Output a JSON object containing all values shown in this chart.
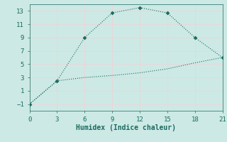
{
  "line1_x": [
    0,
    3,
    6,
    9,
    12,
    15,
    18,
    21
  ],
  "line1_y": [
    -1,
    2.5,
    9,
    12.7,
    13.5,
    12.7,
    9,
    6
  ],
  "line2_x": [
    0,
    3,
    6,
    9,
    12,
    15,
    18,
    21
  ],
  "line2_y": [
    -1,
    2.5,
    3.0,
    3.3,
    3.7,
    4.3,
    5.2,
    6
  ],
  "line_color": "#1a6b5e",
  "bg_color": "#cce9e5",
  "grid_color": "#e8d8d8",
  "xlabel": "Humidex (Indice chaleur)",
  "xlim": [
    0,
    21
  ],
  "ylim": [
    -2,
    14
  ],
  "xticks": [
    0,
    3,
    6,
    9,
    12,
    15,
    18,
    21
  ],
  "yticks": [
    -1,
    1,
    3,
    5,
    7,
    9,
    11,
    13
  ],
  "tick_color": "#1a6b5e",
  "label_color": "#1a6b5e"
}
